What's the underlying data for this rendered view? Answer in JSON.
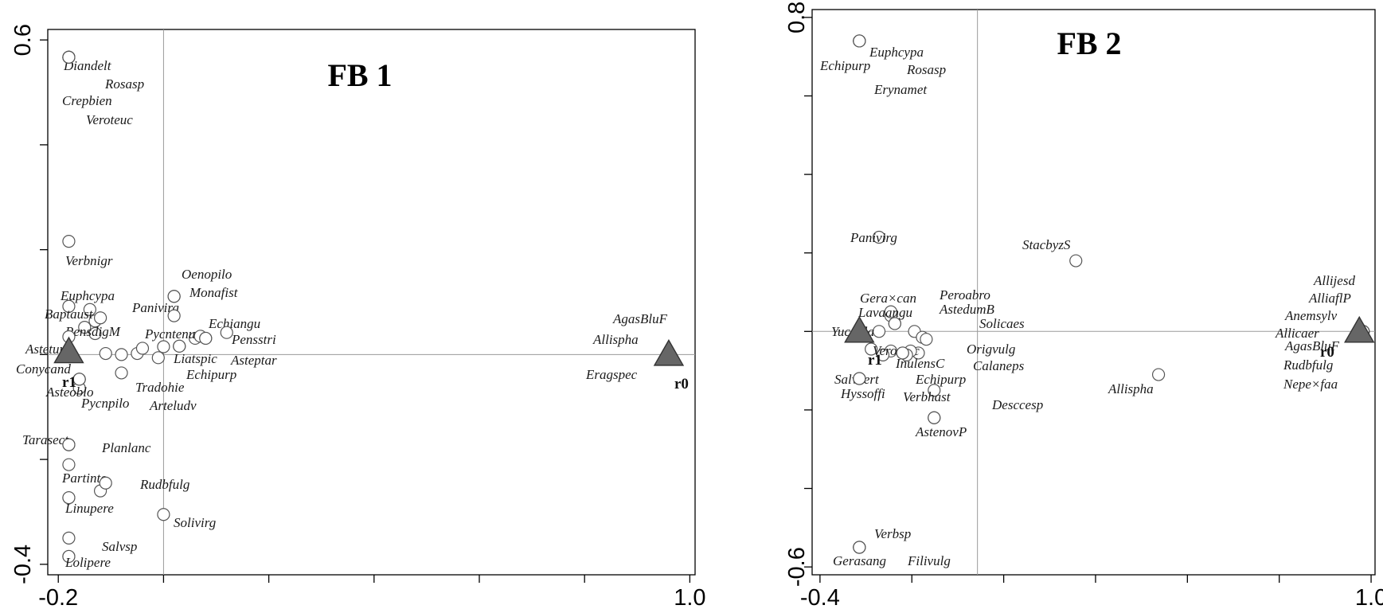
{
  "chart_data": [
    {
      "type": "scatter",
      "title": "FB 1",
      "xlim": [
        -0.22,
        1.01
      ],
      "ylim": [
        -0.42,
        0.62
      ],
      "x_ticks": [
        -0.2,
        1.0
      ],
      "x_tick_labels": [
        "-0.2",
        "1.0"
      ],
      "y_ticks": [
        0.6,
        -0.4
      ],
      "y_tick_labels": [
        "0.6",
        "-0.4"
      ],
      "grid": false,
      "species": [
        {
          "label": "Diandelt",
          "x": -0.18,
          "y": 0.567
        },
        {
          "label": "Rosasp",
          "x": -0.18,
          "y": 0.567
        },
        {
          "label": "Crepbien",
          "x": -0.18,
          "y": 0.567
        },
        {
          "label": "Veroteuc",
          "x": -0.18,
          "y": 0.567
        },
        {
          "label": "Verbnigr",
          "x": -0.18,
          "y": 0.216
        },
        {
          "label": "Oenopilo",
          "x": 0.02,
          "y": 0.111
        },
        {
          "label": "Monafist",
          "x": 0.02,
          "y": 0.111
        },
        {
          "label": "Euphcypa",
          "x": -0.18,
          "y": 0.092
        },
        {
          "label": "Baptaust",
          "x": -0.14,
          "y": 0.086
        },
        {
          "label": "Panivirg",
          "x": -0.12,
          "y": 0.07
        },
        {
          "label": "PensdigM",
          "x": -0.13,
          "y": 0.04
        },
        {
          "label": "Pycntenu",
          "x": 0.02,
          "y": 0.074
        },
        {
          "label": "Echiangu",
          "x": 0.07,
          "y": 0.035
        },
        {
          "label": "Pensstri",
          "x": 0.12,
          "y": 0.042
        },
        {
          "label": "Liatspic",
          "x": 0.08,
          "y": 0.031
        },
        {
          "label": "Asteptar",
          "x": 0.08,
          "y": 0.031
        },
        {
          "label": "Asteturb",
          "x": -0.18,
          "y": 0.034
        },
        {
          "label": "Conycand",
          "x": -0.16,
          "y": -0.047
        },
        {
          "label": "Asteoblo",
          "x": -0.16,
          "y": -0.047
        },
        {
          "label": "Pycnpilo",
          "x": -0.16,
          "y": -0.047
        },
        {
          "label": "Tradohie",
          "x": -0.08,
          "y": 0.0
        },
        {
          "label": "Echipurp",
          "x": 0.03,
          "y": 0.016
        },
        {
          "label": "Arteludv",
          "x": 0.03,
          "y": 0.016
        },
        {
          "label": "Tarasect",
          "x": -0.18,
          "y": -0.172
        },
        {
          "label": "Planlanc",
          "x": -0.18,
          "y": -0.172
        },
        {
          "label": "Partinte",
          "x": -0.18,
          "y": -0.273
        },
        {
          "label": "Rudbfulg",
          "x": -0.11,
          "y": -0.245
        },
        {
          "label": "Linupere",
          "x": -0.18,
          "y": -0.273
        },
        {
          "label": "Solivirg",
          "x": 0.0,
          "y": -0.305
        },
        {
          "label": "Salvsp",
          "x": -0.18,
          "y": -0.385
        },
        {
          "label": "Lolipere",
          "x": -0.18,
          "y": -0.385
        },
        {
          "label": "AgasBluF",
          "x": 0.96,
          "y": 0.0
        },
        {
          "label": "Allispha",
          "x": 0.96,
          "y": 0.0
        },
        {
          "label": "Eragspec",
          "x": 0.96,
          "y": 0.0
        }
      ],
      "extra_points": [
        {
          "x": -0.15,
          "y": 0.052
        },
        {
          "x": -0.13,
          "y": 0.064
        },
        {
          "x": -0.11,
          "y": 0.002
        },
        {
          "x": -0.05,
          "y": 0.002
        },
        {
          "x": -0.04,
          "y": 0.012
        },
        {
          "x": -0.01,
          "y": -0.006
        },
        {
          "x": 0.0,
          "y": 0.015
        },
        {
          "x": 0.06,
          "y": 0.031
        },
        {
          "x": -0.16,
          "y": -0.064
        },
        {
          "x": -0.08,
          "y": -0.035
        },
        {
          "x": -0.12,
          "y": -0.26
        },
        {
          "x": -0.18,
          "y": -0.21
        },
        {
          "x": -0.18,
          "y": -0.35
        }
      ],
      "environment": [
        {
          "label": "r1",
          "x": -0.18,
          "y": 0.005
        },
        {
          "label": "r0",
          "x": 0.96,
          "y": 0.0
        }
      ]
    },
    {
      "type": "scatter",
      "title": "FB 2",
      "xlim": [
        -0.42,
        1.01
      ],
      "ylim": [
        -0.62,
        0.82
      ],
      "x_ticks": [
        -0.4,
        1.0
      ],
      "x_tick_labels": [
        "-0.4",
        "1.0"
      ],
      "y_ticks": [
        0.8,
        -0.6
      ],
      "y_tick_labels": [
        "0.8",
        "-0.6"
      ],
      "grid": false,
      "species": [
        {
          "label": "Euphcypa",
          "x": -0.3,
          "y": 0.74
        },
        {
          "label": "Echipurp",
          "x": -0.3,
          "y": 0.74
        },
        {
          "label": "Rosasp",
          "x": -0.3,
          "y": 0.74
        },
        {
          "label": "Erynamet",
          "x": -0.3,
          "y": 0.74
        },
        {
          "label": "Panivirg",
          "x": -0.25,
          "y": 0.24
        },
        {
          "label": "StacbyzS",
          "x": 0.25,
          "y": 0.18
        },
        {
          "label": "Allijesd",
          "x": 0.98,
          "y": 0.0
        },
        {
          "label": "AlliaflP",
          "x": 0.98,
          "y": 0.0
        },
        {
          "label": "Anemsylv",
          "x": 0.98,
          "y": 0.0
        },
        {
          "label": "Allicaer",
          "x": 0.98,
          "y": 0.0
        },
        {
          "label": "AgasBluF",
          "x": 0.98,
          "y": 0.0
        },
        {
          "label": "Rudbfulg",
          "x": 0.98,
          "y": 0.0
        },
        {
          "label": "Nepe×faa",
          "x": 0.98,
          "y": 0.0
        },
        {
          "label": "Gera×can",
          "x": -0.22,
          "y": 0.05
        },
        {
          "label": "Peroabro",
          "x": -0.21,
          "y": 0.02
        },
        {
          "label": "AstedumB",
          "x": -0.21,
          "y": 0.02
        },
        {
          "label": "Lavaangu",
          "x": -0.25,
          "y": 0.0
        },
        {
          "label": "Solicaes",
          "x": -0.13,
          "y": -0.02
        },
        {
          "label": "Yuccfila",
          "x": -0.3,
          "y": 0.0
        },
        {
          "label": "Veroteuc",
          "x": -0.24,
          "y": -0.06
        },
        {
          "label": "Origvulg",
          "x": -0.17,
          "y": -0.05
        },
        {
          "label": "InulensC",
          "x": -0.18,
          "y": -0.06
        },
        {
          "label": "Calaneps",
          "x": -0.11,
          "y": -0.15
        },
        {
          "label": "Salvvert",
          "x": -0.3,
          "y": -0.12
        },
        {
          "label": "Echipurp",
          "x": -0.19,
          "y": -0.055
        },
        {
          "label": "Hyssoffi",
          "x": -0.3,
          "y": -0.12
        },
        {
          "label": "Verbhast",
          "x": -0.19,
          "y": -0.055
        },
        {
          "label": "Allispha",
          "x": 0.46,
          "y": -0.11
        },
        {
          "label": "Desccesp",
          "x": -0.11,
          "y": -0.22
        },
        {
          "label": "AstenovP",
          "x": -0.11,
          "y": -0.22
        },
        {
          "label": "Verbsp",
          "x": -0.3,
          "y": -0.55
        },
        {
          "label": "Gerasang",
          "x": -0.3,
          "y": -0.55
        },
        {
          "label": "Filivulg",
          "x": -0.3,
          "y": -0.55
        }
      ],
      "extra_points": [
        {
          "x": -0.22,
          "y": 0.04
        },
        {
          "x": -0.27,
          "y": -0.045
        },
        {
          "x": -0.22,
          "y": -0.05
        },
        {
          "x": -0.16,
          "y": 0.0
        },
        {
          "x": -0.14,
          "y": -0.015
        },
        {
          "x": -0.15,
          "y": -0.055
        }
      ],
      "environment": [
        {
          "label": "r1",
          "x": -0.3,
          "y": 0.0
        },
        {
          "label": "r0",
          "x": 0.97,
          "y": 0.0
        }
      ]
    }
  ]
}
